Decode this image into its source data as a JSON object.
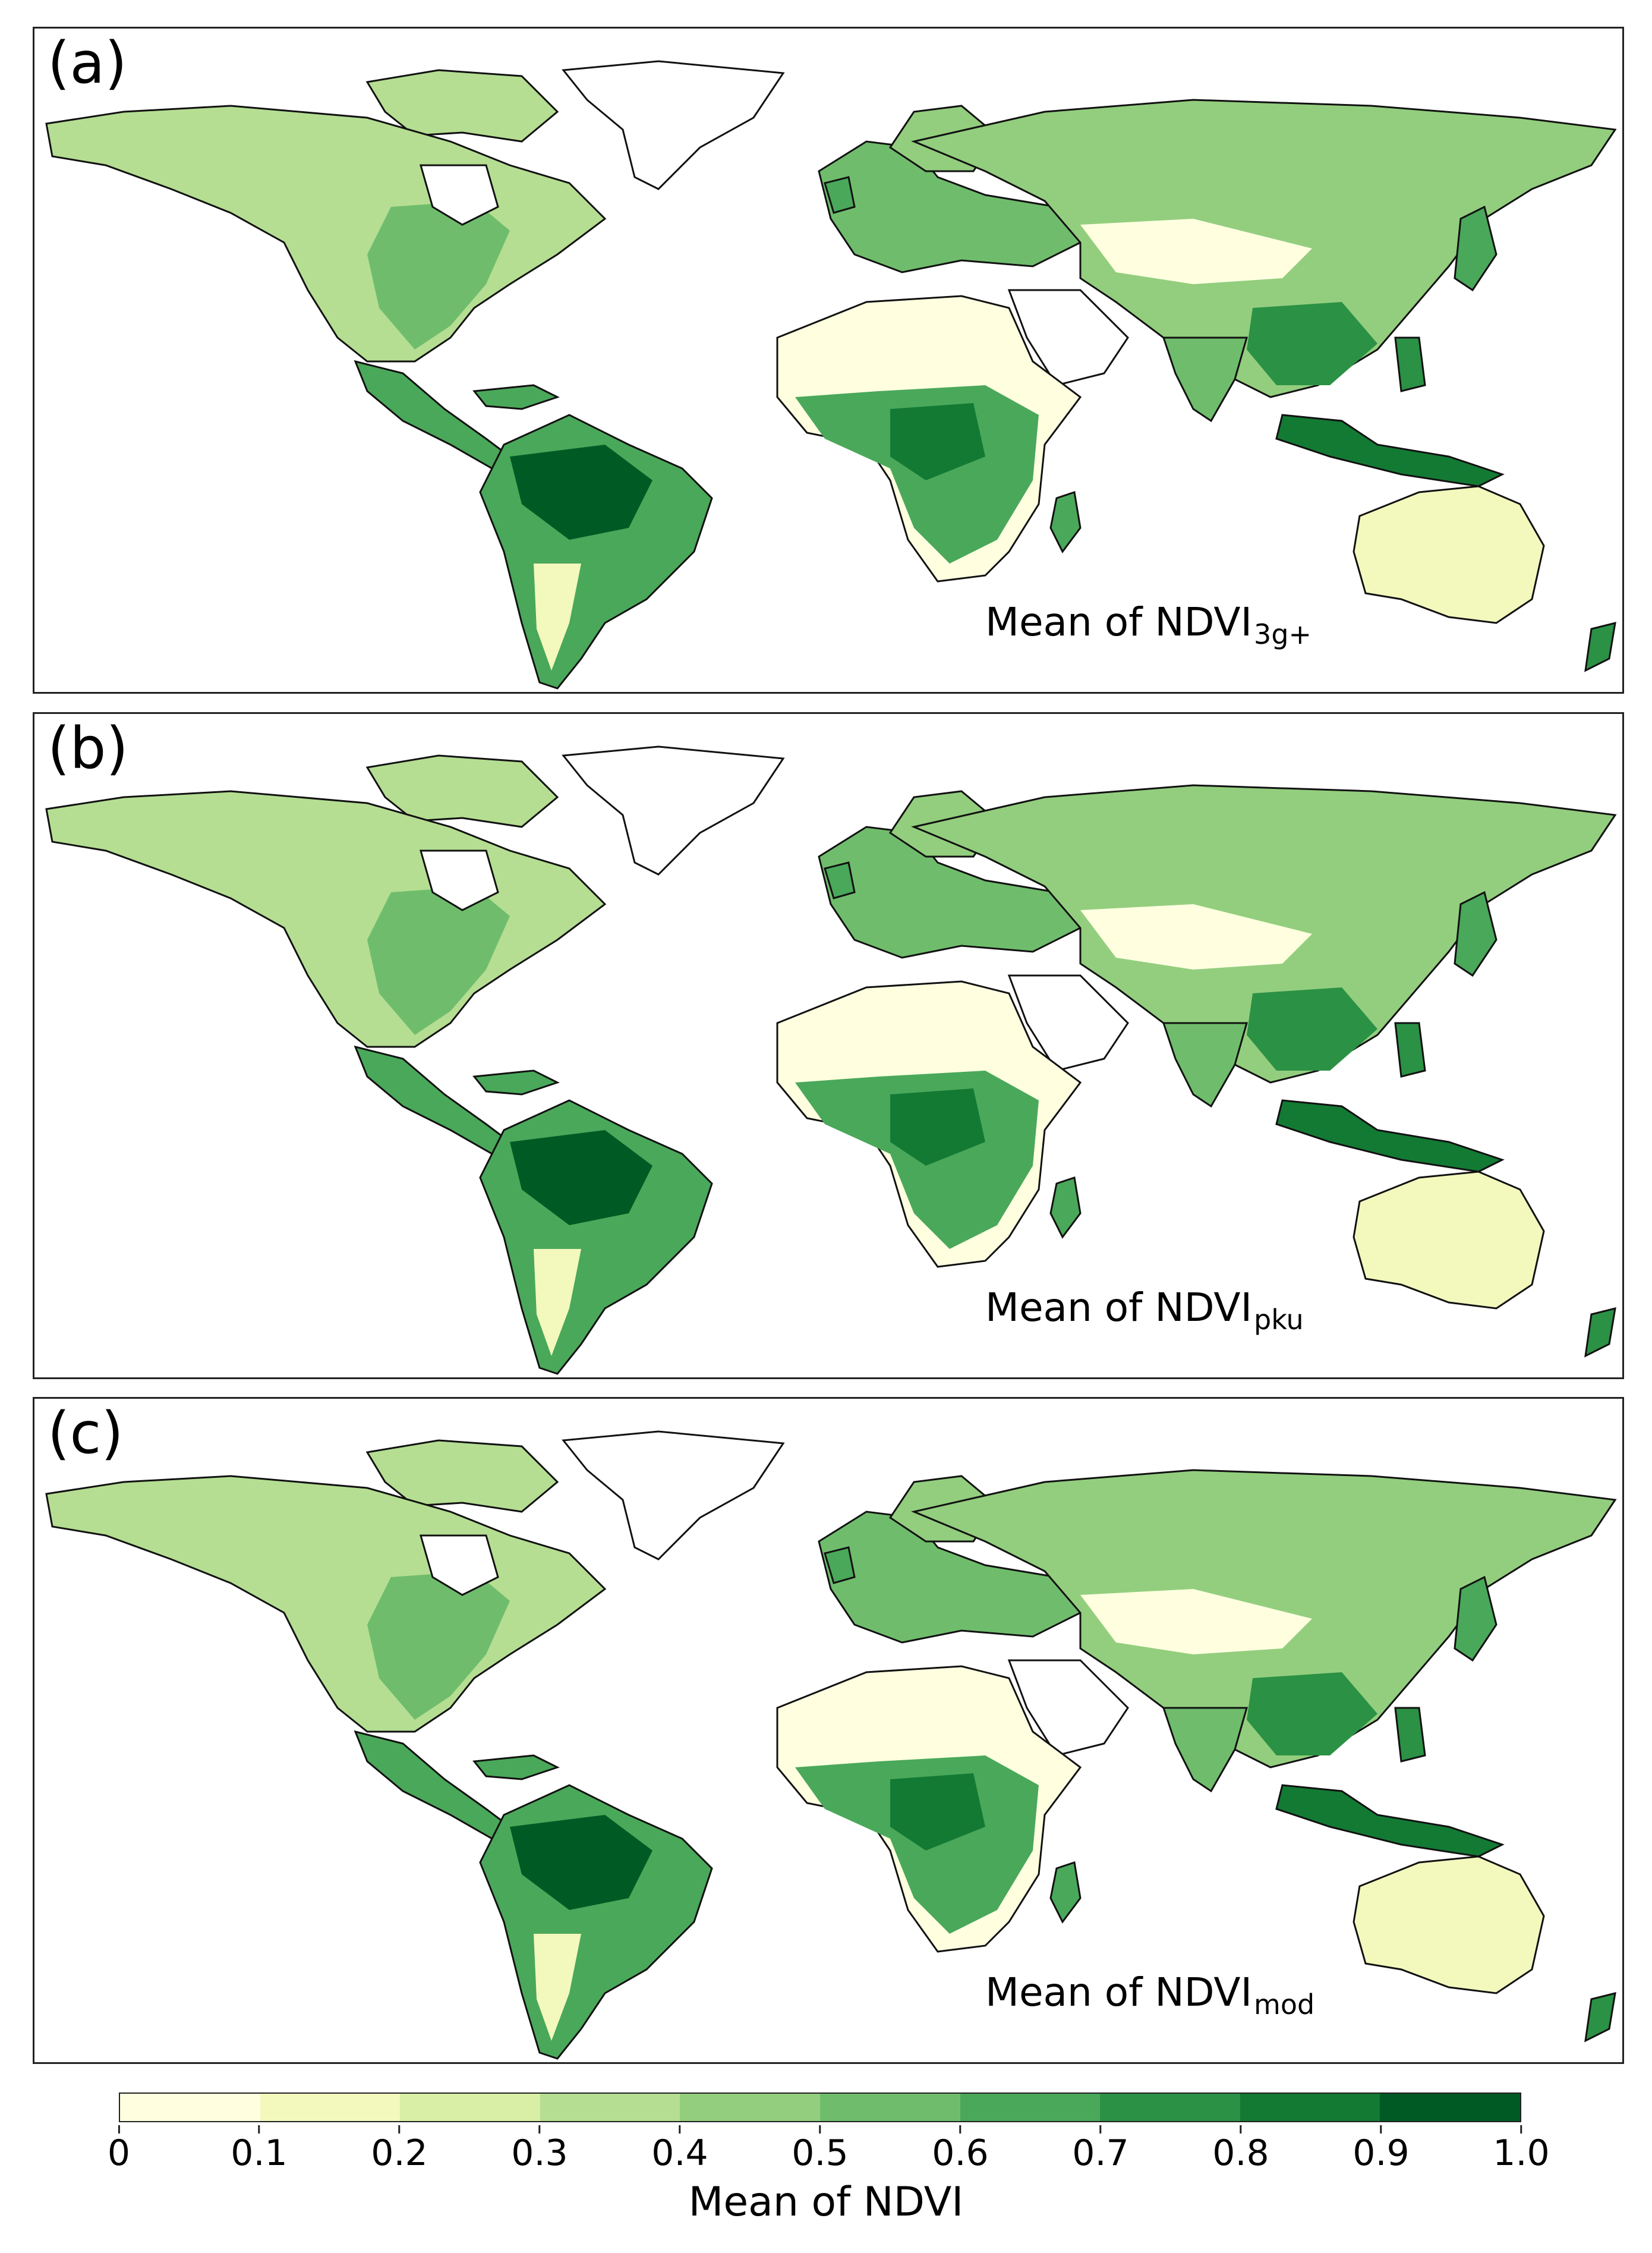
{
  "panels": [
    {
      "tag": "(a)",
      "title_main": "Mean of NDVI",
      "title_sub": "3g+"
    },
    {
      "tag": "(b)",
      "title_main": "Mean of NDVI",
      "title_sub": "pku"
    },
    {
      "tag": "(c)",
      "title_main": "Mean of NDVI",
      "title_sub": "mod"
    }
  ],
  "legend": {
    "label": "Mean of NDVI",
    "ticks": [
      "0",
      "0.1",
      "0.2",
      "0.3",
      "0.4",
      "0.5",
      "0.6",
      "0.7",
      "0.8",
      "0.9",
      "1.0"
    ],
    "range": [
      0,
      1.0
    ],
    "colors": [
      "#ffffe0",
      "#f3f8bd",
      "#d9efa5",
      "#b5de92",
      "#93ce7e",
      "#6fbd6c",
      "#4aa85a",
      "#2b9145",
      "#137a34",
      "#005a24"
    ]
  },
  "map_colors": {
    "ocean": "#ffffff",
    "desert": "#ffffe8",
    "coastline": "#111111"
  }
}
